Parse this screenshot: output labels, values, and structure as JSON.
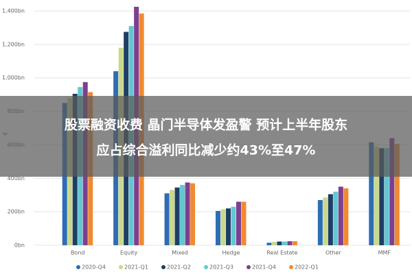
{
  "chart_data": {
    "type": "bar",
    "ylabel": "€",
    "categories": [
      "Bond",
      "Equity",
      "Mixed",
      "Hedge",
      "Real Estate",
      "Other",
      "MMF"
    ],
    "series": [
      {
        "name": "2020-Q4",
        "color": "#2e6db4",
        "values": [
          850,
          1040,
          310,
          205,
          15,
          270,
          615
        ]
      },
      {
        "name": "2021-Q1",
        "color": "#c9d88c",
        "values": [
          880,
          1180,
          330,
          215,
          20,
          285,
          590
        ]
      },
      {
        "name": "2021-Q2",
        "color": "#1f3e66",
        "values": [
          905,
          1275,
          345,
          220,
          22,
          305,
          580
        ]
      },
      {
        "name": "2021-Q3",
        "color": "#63c7d1",
        "values": [
          945,
          1310,
          360,
          230,
          22,
          320,
          580
        ]
      },
      {
        "name": "2021-Q4",
        "color": "#7d3f8f",
        "values": [
          975,
          1425,
          375,
          260,
          24,
          350,
          640
        ]
      },
      {
        "name": "2022-Q1",
        "color": "#f08a32",
        "values": [
          915,
          1385,
          370,
          260,
          24,
          340,
          605
        ]
      }
    ],
    "ylim": [
      0,
      1400
    ],
    "yticks": [
      {
        "value": 0,
        "label": "0bn"
      },
      {
        "value": 200,
        "label": "200bn"
      },
      {
        "value": 400,
        "label": "400bn"
      },
      {
        "value": 600,
        "label": "600bn"
      },
      {
        "value": 800,
        "label": "800bn"
      },
      {
        "value": 1000,
        "label": "1,000bn"
      },
      {
        "value": 1200,
        "label": "1,200bn"
      },
      {
        "value": 1400,
        "label": "1,400bn"
      }
    ],
    "grid": true,
    "legend": "bottom"
  },
  "overlay": {
    "lines": [
      "股票融资收费 晶门半导体发盈警 预计上半年股东",
      "应占综合溢利同比减少约43%至47%"
    ]
  }
}
